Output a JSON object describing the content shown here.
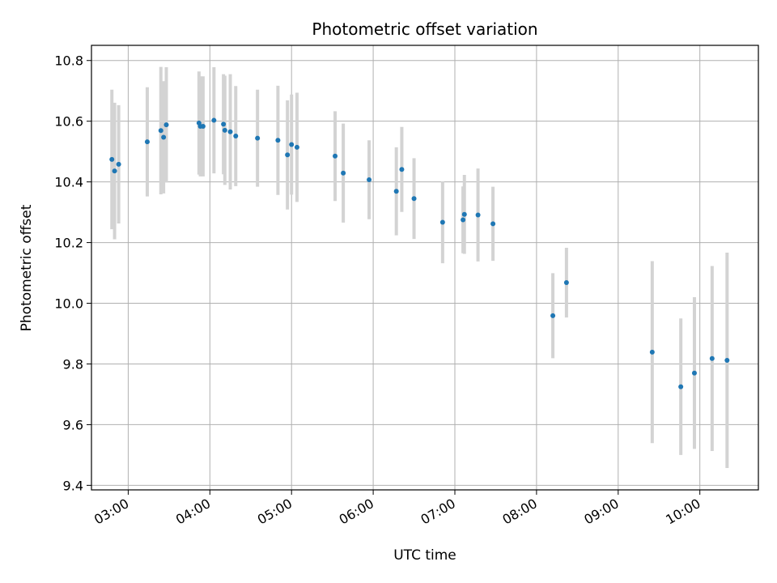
{
  "chart_data": {
    "type": "scatter",
    "title": "Photometric offset variation",
    "xlabel": "UTC time",
    "ylabel": "Photometric offset",
    "xlim": [
      "02:33",
      "10:43"
    ],
    "ylim": [
      9.385,
      10.85
    ],
    "grid": true,
    "x_ticks": [
      "03:00",
      "04:00",
      "05:00",
      "06:00",
      "07:00",
      "08:00",
      "09:00",
      "10:00"
    ],
    "y_ticks": [
      "9.4",
      "9.6",
      "9.8",
      "10.0",
      "10.2",
      "10.4",
      "10.6",
      "10.8"
    ],
    "x_ticks_rotated": true,
    "colors": {
      "marker": "#1f77b4",
      "errorbar": "#d3d3d3",
      "grid": "#b0b0b0"
    },
    "points": [
      {
        "t": "02:48",
        "y": 10.474,
        "err": 0.23
      },
      {
        "t": "02:50",
        "y": 10.436,
        "err": 0.225
      },
      {
        "t": "02:53",
        "y": 10.458,
        "err": 0.195
      },
      {
        "t": "03:14",
        "y": 10.532,
        "err": 0.18
      },
      {
        "t": "03:24",
        "y": 10.569,
        "err": 0.21
      },
      {
        "t": "03:26",
        "y": 10.547,
        "err": 0.185
      },
      {
        "t": "03:28",
        "y": 10.588,
        "err": 0.19
      },
      {
        "t": "03:52",
        "y": 10.594,
        "err": 0.17
      },
      {
        "t": "03:53",
        "y": 10.583,
        "err": 0.165
      },
      {
        "t": "03:55",
        "y": 10.583,
        "err": 0.165
      },
      {
        "t": "04:03",
        "y": 10.603,
        "err": 0.175
      },
      {
        "t": "04:10",
        "y": 10.59,
        "err": 0.165
      },
      {
        "t": "04:11",
        "y": 10.57,
        "err": 0.18
      },
      {
        "t": "04:15",
        "y": 10.565,
        "err": 0.19
      },
      {
        "t": "04:19",
        "y": 10.551,
        "err": 0.165
      },
      {
        "t": "04:35",
        "y": 10.544,
        "err": 0.16
      },
      {
        "t": "04:50",
        "y": 10.537,
        "err": 0.18
      },
      {
        "t": "04:57",
        "y": 10.489,
        "err": 0.18
      },
      {
        "t": "05:00",
        "y": 10.523,
        "err": 0.165
      },
      {
        "t": "05:04",
        "y": 10.514,
        "err": 0.18
      },
      {
        "t": "05:32",
        "y": 10.485,
        "err": 0.148
      },
      {
        "t": "05:38",
        "y": 10.429,
        "err": 0.163
      },
      {
        "t": "05:57",
        "y": 10.407,
        "err": 0.13
      },
      {
        "t": "06:17",
        "y": 10.369,
        "err": 0.145
      },
      {
        "t": "06:21",
        "y": 10.441,
        "err": 0.14
      },
      {
        "t": "06:30",
        "y": 10.345,
        "err": 0.133
      },
      {
        "t": "06:51",
        "y": 10.267,
        "err": 0.135
      },
      {
        "t": "07:06",
        "y": 10.275,
        "err": 0.11
      },
      {
        "t": "07:07",
        "y": 10.293,
        "err": 0.13
      },
      {
        "t": "07:17",
        "y": 10.291,
        "err": 0.153
      },
      {
        "t": "07:28",
        "y": 10.262,
        "err": 0.122
      },
      {
        "t": "08:12",
        "y": 9.959,
        "err": 0.14
      },
      {
        "t": "08:22",
        "y": 10.068,
        "err": 0.115
      },
      {
        "t": "09:25",
        "y": 9.839,
        "err": 0.3
      },
      {
        "t": "09:46",
        "y": 9.725,
        "err": 0.225
      },
      {
        "t": "09:56",
        "y": 9.77,
        "err": 0.25
      },
      {
        "t": "10:09",
        "y": 9.818,
        "err": 0.305
      },
      {
        "t": "10:20",
        "y": 9.812,
        "err": 0.355
      }
    ]
  }
}
